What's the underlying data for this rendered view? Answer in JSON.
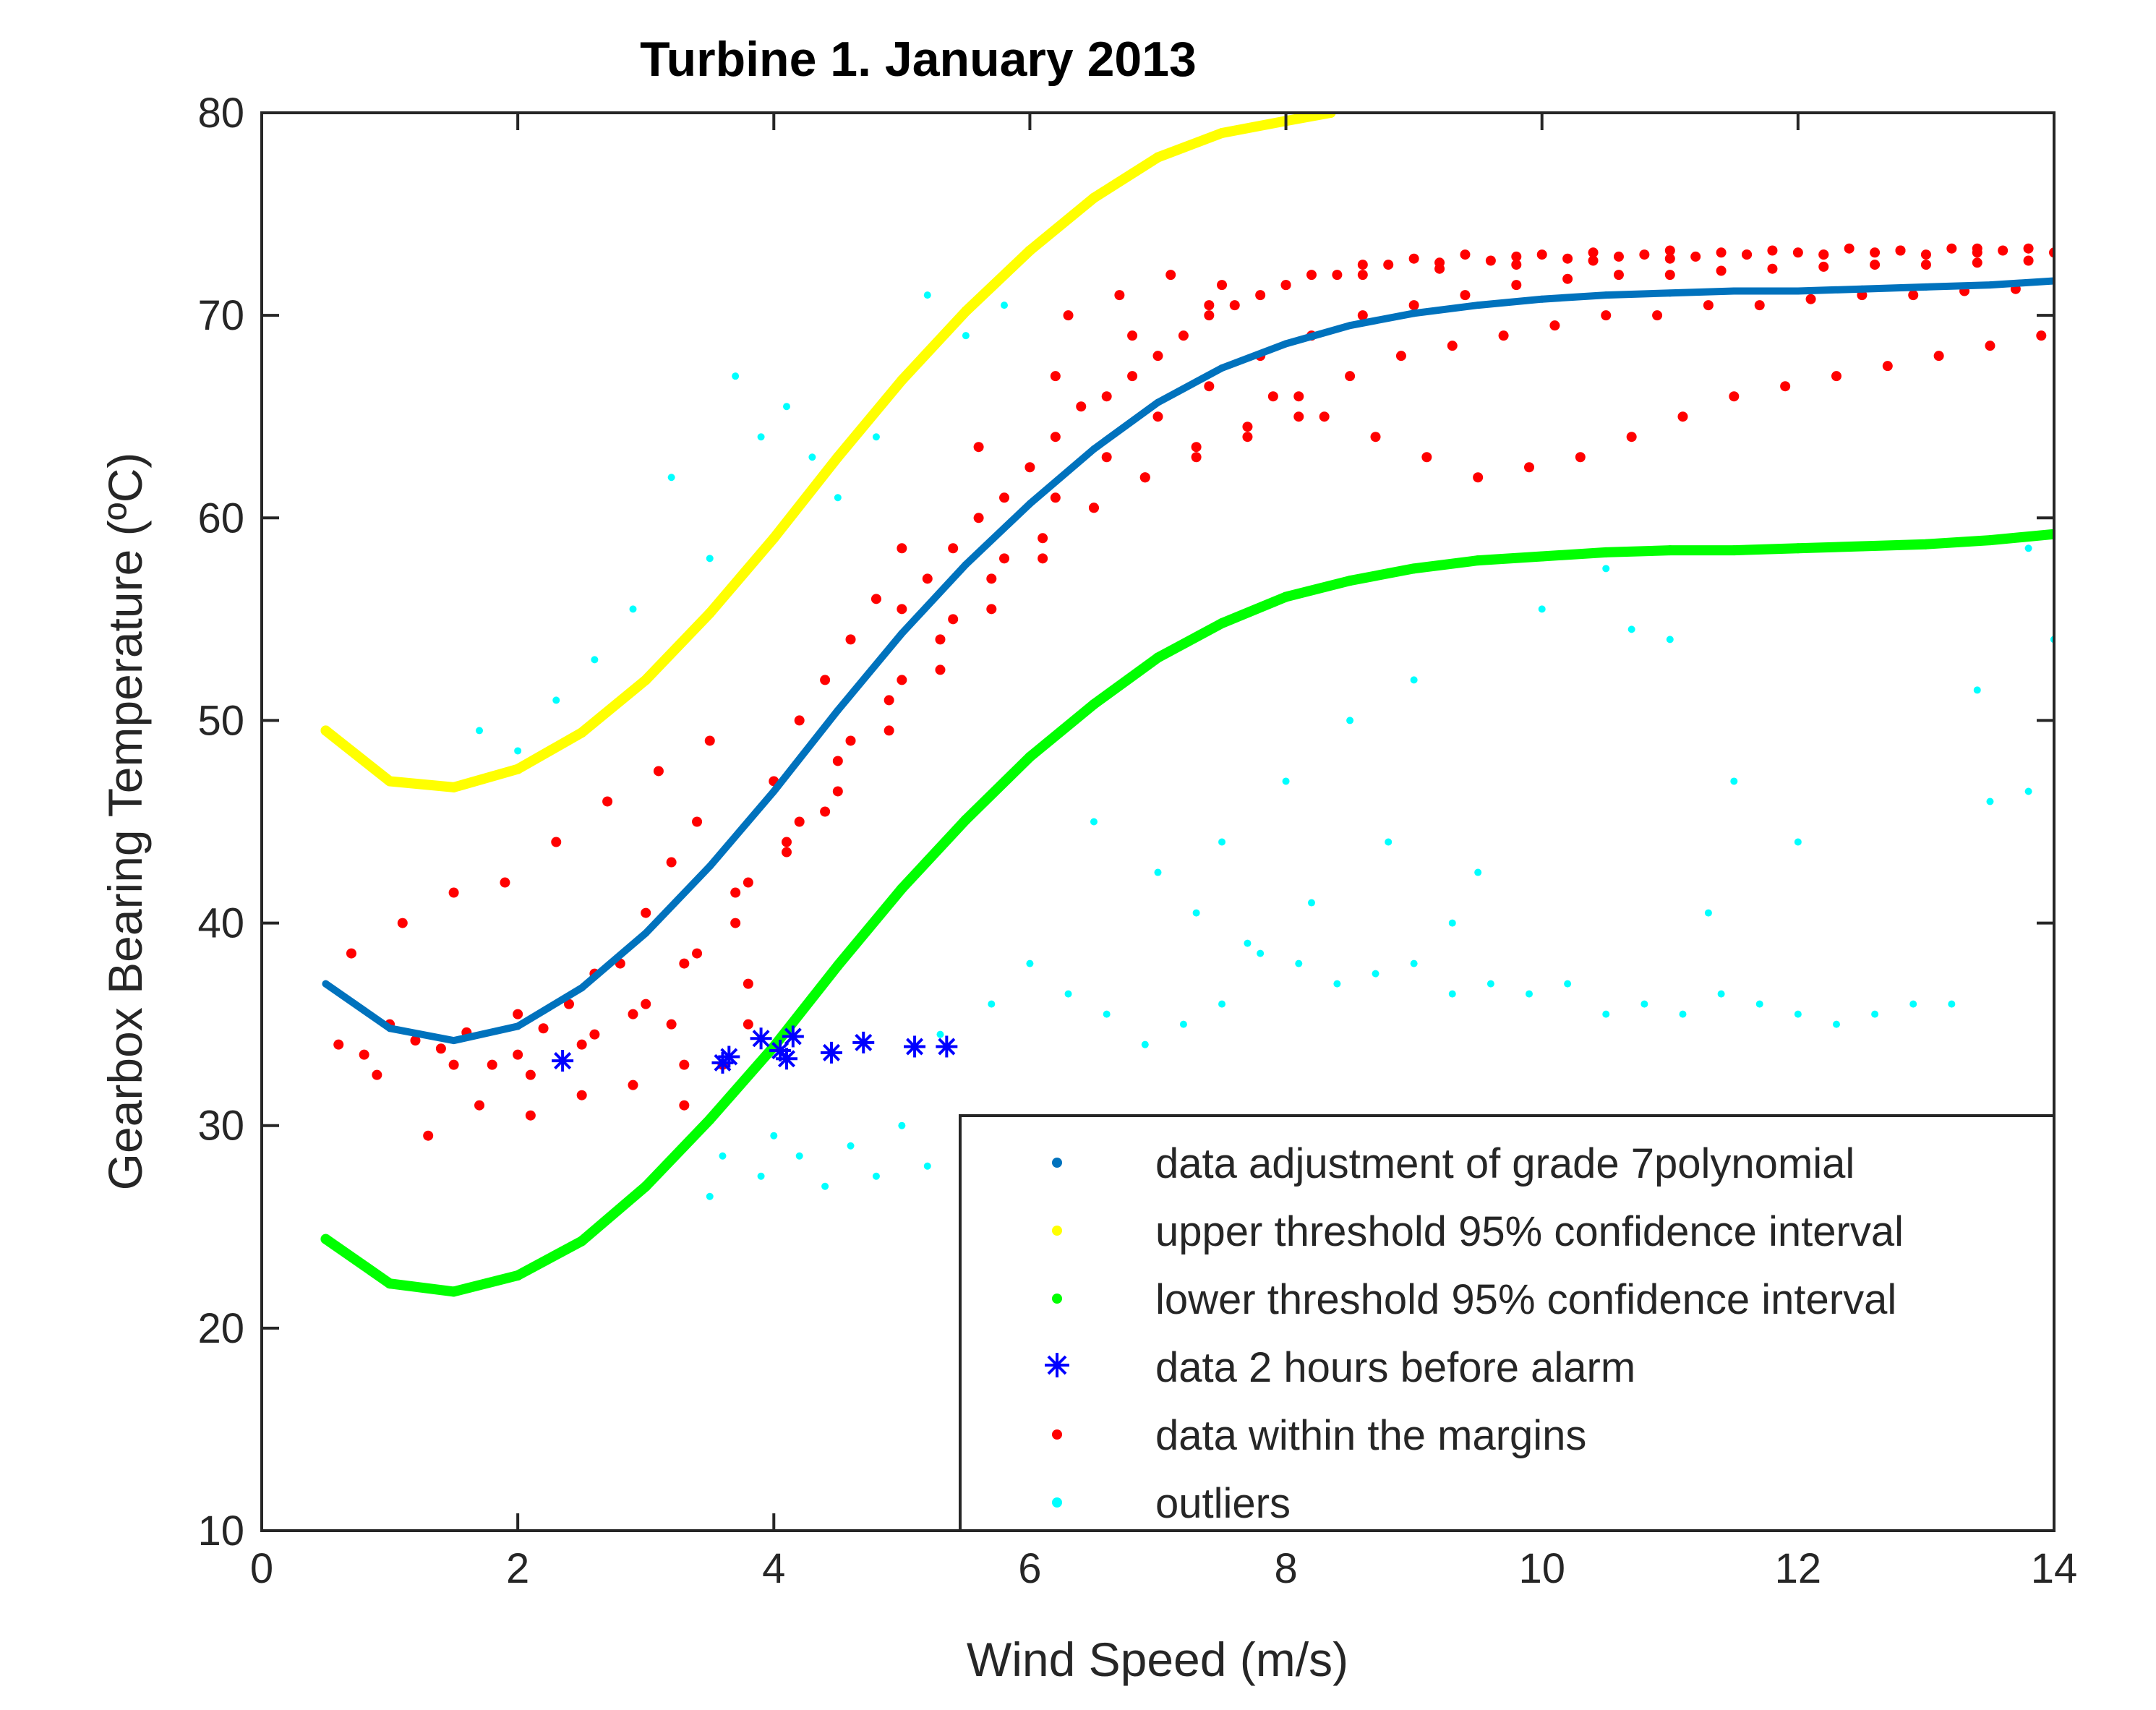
{
  "chart_data": {
    "type": "scatter",
    "title": "Turbine 1. January 2013",
    "xlabel": "Wind Speed (m/s)",
    "ylabel": "Gearbox Bearing Temperature (ºC)",
    "xlim": [
      0,
      14
    ],
    "ylim": [
      10,
      80
    ],
    "xticks": [
      0,
      2,
      4,
      6,
      8,
      10,
      12,
      14
    ],
    "yticks": [
      10,
      20,
      30,
      40,
      50,
      60,
      70,
      80
    ],
    "grid": false,
    "legend_position": "bottom-right",
    "colors": {
      "fit": "#0072bd",
      "upper": "#ffff00",
      "lower": "#00ff00",
      "alarm": "#0000ff",
      "within": "#ff0000",
      "outliers": "#00ffff",
      "axes": "#262626"
    },
    "series": [
      {
        "id": "fit",
        "name": "data adjustment of grade 7polynomial",
        "marker": "dot",
        "x": [
          0.5,
          1.0,
          1.5,
          2.0,
          2.5,
          3.0,
          3.5,
          4.0,
          4.5,
          5.0,
          5.5,
          6.0,
          6.5,
          7.0,
          7.5,
          8.0,
          8.5,
          9.0,
          9.5,
          10.0,
          10.5,
          11.0,
          11.5,
          12.0,
          12.5,
          13.0,
          13.5,
          14.0
        ],
        "y": [
          37.0,
          34.8,
          34.2,
          34.9,
          36.8,
          39.5,
          42.8,
          46.5,
          50.5,
          54.3,
          57.7,
          60.7,
          63.4,
          65.7,
          67.4,
          68.6,
          69.5,
          70.1,
          70.5,
          70.8,
          71.0,
          71.1,
          71.2,
          71.2,
          71.3,
          71.4,
          71.5,
          71.7
        ]
      },
      {
        "id": "upper",
        "name": "upper threshold 95% confidence interval",
        "marker": "dot",
        "x": [
          0.5,
          1.0,
          1.5,
          2.0,
          2.5,
          3.0,
          3.5,
          4.0,
          4.5,
          5.0,
          5.5,
          6.0,
          6.5,
          7.0,
          7.5,
          8.0,
          8.35
        ],
        "y": [
          49.5,
          47.0,
          46.7,
          47.6,
          49.4,
          52.0,
          55.3,
          59.0,
          63.0,
          66.8,
          70.2,
          73.2,
          75.8,
          77.8,
          79.0,
          79.6,
          80.0
        ]
      },
      {
        "id": "lower",
        "name": "lower threshold 95% confidence interval",
        "marker": "dot",
        "x": [
          0.5,
          1.0,
          1.5,
          2.0,
          2.5,
          3.0,
          3.5,
          4.0,
          4.5,
          5.0,
          5.5,
          6.0,
          6.5,
          7.0,
          7.5,
          8.0,
          8.5,
          9.0,
          9.5,
          10.0,
          10.5,
          11.0,
          11.5,
          12.0,
          12.5,
          13.0,
          13.5,
          14.0
        ],
        "y": [
          24.4,
          22.2,
          21.8,
          22.6,
          24.3,
          27.0,
          30.3,
          33.9,
          37.9,
          41.7,
          45.1,
          48.2,
          50.8,
          53.1,
          54.8,
          56.1,
          56.9,
          57.5,
          57.9,
          58.1,
          58.3,
          58.4,
          58.4,
          58.5,
          58.6,
          58.7,
          58.9,
          59.2
        ]
      },
      {
        "id": "alarm",
        "name": "data 2 hours before alarm",
        "marker": "asterisk",
        "x": [
          2.35,
          3.6,
          3.65,
          3.9,
          4.05,
          4.1,
          4.15,
          4.45,
          4.7,
          5.1,
          5.35
        ],
        "y": [
          33.2,
          33.1,
          33.4,
          34.3,
          33.7,
          33.3,
          34.4,
          33.6,
          34.1,
          33.9,
          33.9
        ]
      },
      {
        "id": "within",
        "name": "data within the margins",
        "marker": "dot",
        "x": [
          0.6,
          0.8,
          1.0,
          1.2,
          1.4,
          1.6,
          1.8,
          2.0,
          2.2,
          2.4,
          2.6,
          2.8,
          3.0,
          3.2,
          3.4,
          0.7,
          1.1,
          1.5,
          1.9,
          2.3,
          2.7,
          3.1,
          3.5,
          3.3,
          3.6,
          3.8,
          4.0,
          4.2,
          4.4,
          4.6,
          4.8,
          5.0,
          5.2,
          5.4,
          5.6,
          5.8,
          6.0,
          6.2,
          6.4,
          6.6,
          6.8,
          7.0,
          7.2,
          7.4,
          7.6,
          7.8,
          8.0,
          8.2,
          8.4,
          8.6,
          8.8,
          9.0,
          9.2,
          9.4,
          9.6,
          9.8,
          10.0,
          10.2,
          10.4,
          10.6,
          10.8,
          11.0,
          11.2,
          11.4,
          11.6,
          11.8,
          12.0,
          12.2,
          12.4,
          12.6,
          12.8,
          13.0,
          13.2,
          13.4,
          13.6,
          13.8,
          14.0,
          3.0,
          3.4,
          3.8,
          4.2,
          4.6,
          5.0,
          5.4,
          5.8,
          6.2,
          6.6,
          7.0,
          7.4,
          7.8,
          8.2,
          8.6,
          9.0,
          9.4,
          9.8,
          10.2,
          10.6,
          11.0,
          11.4,
          11.8,
          12.2,
          12.6,
          13.0,
          13.4,
          13.8,
          2.1,
          2.5,
          2.9,
          3.3,
          3.7,
          4.1,
          4.5,
          4.9,
          5.3,
          5.7,
          6.1,
          6.5,
          6.9,
          7.3,
          7.7,
          8.1,
          8.5,
          8.9,
          9.3,
          9.7,
          10.1,
          10.5,
          10.9,
          11.3,
          11.7,
          12.1,
          12.5,
          12.9,
          13.3,
          13.7,
          1.3,
          1.7,
          2.1,
          2.5,
          2.9,
          3.3,
          3.7,
          4.1,
          4.5,
          4.9,
          5.3,
          5.7,
          6.1,
          6.5,
          6.9,
          7.3,
          7.7,
          8.1,
          0.9,
          1.5,
          2.0,
          2.6,
          3.2,
          3.8,
          4.4,
          5.0,
          5.6,
          6.2,
          6.8,
          7.4,
          8.0,
          8.6,
          9.2,
          9.8,
          10.4,
          11.0,
          11.6,
          12.2,
          12.8,
          13.4,
          6.3,
          6.7,
          7.1,
          7.5,
          7.9,
          8.3,
          8.7,
          9.1,
          9.5,
          9.9,
          10.3,
          10.7,
          11.1,
          11.5,
          11.9,
          12.3,
          12.7,
          13.1,
          13.5,
          13.9
        ],
        "y": [
          34.0,
          33.5,
          35.0,
          34.2,
          33.8,
          34.6,
          33.0,
          35.5,
          34.8,
          36.0,
          37.5,
          38.0,
          40.5,
          43.0,
          45.0,
          38.5,
          40.0,
          41.5,
          42.0,
          44.0,
          46.0,
          47.5,
          49.0,
          31.0,
          33.0,
          35.0,
          47.0,
          50.0,
          52.0,
          54.0,
          56.0,
          55.5,
          57.0,
          58.5,
          60.0,
          61.0,
          62.5,
          64.0,
          65.5,
          66.0,
          67.0,
          68.0,
          69.0,
          70.0,
          70.5,
          71.0,
          71.5,
          72.0,
          72.0,
          72.5,
          72.5,
          72.8,
          72.6,
          73.0,
          72.7,
          72.9,
          73.0,
          72.8,
          73.1,
          72.9,
          73.0,
          73.2,
          72.9,
          73.1,
          73.0,
          73.2,
          73.1,
          73.0,
          73.3,
          73.1,
          73.2,
          73.0,
          73.3,
          73.1,
          73.2,
          73.3,
          73.1,
          36.0,
          38.5,
          42.0,
          45.0,
          49.0,
          52.0,
          55.0,
          58.0,
          61.0,
          63.0,
          65.0,
          66.5,
          68.0,
          69.0,
          70.0,
          70.5,
          71.0,
          71.5,
          71.8,
          72.0,
          72.0,
          72.2,
          72.3,
          72.4,
          72.5,
          72.5,
          72.6,
          72.7,
          30.5,
          31.5,
          32.0,
          33.0,
          40.0,
          44.0,
          48.0,
          51.0,
          54.0,
          57.0,
          59.0,
          60.5,
          62.0,
          63.5,
          64.5,
          66.0,
          67.0,
          68.0,
          68.5,
          69.0,
          69.5,
          70.0,
          70.0,
          70.5,
          70.5,
          70.8,
          71.0,
          71.0,
          71.2,
          71.3,
          29.5,
          31.0,
          32.5,
          34.0,
          35.5,
          38.0,
          41.5,
          43.5,
          46.5,
          49.5,
          52.5,
          55.5,
          58.0,
          60.5,
          62.0,
          63.0,
          64.0,
          65.0,
          32.5,
          33.0,
          33.5,
          34.5,
          35.0,
          37.0,
          45.5,
          58.5,
          63.5,
          67.0,
          69.0,
          70.5,
          71.5,
          72.0,
          72.3,
          72.5,
          72.7,
          72.8,
          73.0,
          73.0,
          73.2,
          73.3,
          70.0,
          71.0,
          72.0,
          71.5,
          66.0,
          65.0,
          64.0,
          63.0,
          62.0,
          62.5,
          63.0,
          64.0,
          65.0,
          66.0,
          66.5,
          67.0,
          67.5,
          68.0,
          68.5,
          69.0
        ]
      },
      {
        "id": "outliers",
        "name": "outliers",
        "marker": "dot",
        "x": [
          1.7,
          2.0,
          2.3,
          2.6,
          2.9,
          3.2,
          3.5,
          3.7,
          3.9,
          4.1,
          4.3,
          4.5,
          4.8,
          5.2,
          5.5,
          5.8,
          3.6,
          4.0,
          4.4,
          4.8,
          5.2,
          5.5,
          3.5,
          3.9,
          4.2,
          4.6,
          5.0,
          5.3,
          5.7,
          6.0,
          6.3,
          6.6,
          6.9,
          7.2,
          7.5,
          7.8,
          8.1,
          8.4,
          8.7,
          9.0,
          9.3,
          9.6,
          9.9,
          10.2,
          10.5,
          10.8,
          11.1,
          11.4,
          11.7,
          12.0,
          12.3,
          12.6,
          12.9,
          13.2,
          13.5,
          13.8,
          14.0,
          6.5,
          7.0,
          7.5,
          8.0,
          8.5,
          9.0,
          9.5,
          10.0,
          10.5,
          11.0,
          11.5,
          12.0,
          13.4,
          13.8,
          14.0,
          7.3,
          7.7,
          8.2,
          8.8,
          9.3,
          10.7,
          11.3
        ],
        "y": [
          49.5,
          48.5,
          51.0,
          53.0,
          55.5,
          62.0,
          58.0,
          67.0,
          64.0,
          65.5,
          63.0,
          61.0,
          64.0,
          71.0,
          69.0,
          70.5,
          28.5,
          29.5,
          27.0,
          27.5,
          28.0,
          29.0,
          26.5,
          27.5,
          28.5,
          29.0,
          30.0,
          34.5,
          36.0,
          38.0,
          36.5,
          35.5,
          34.0,
          35.0,
          36.0,
          38.5,
          38.0,
          37.0,
          37.5,
          38.0,
          36.5,
          37.0,
          36.5,
          37.0,
          35.5,
          36.0,
          35.5,
          36.5,
          36.0,
          35.5,
          35.0,
          35.5,
          36.0,
          36.0,
          46.0,
          46.5,
          54.0,
          45.0,
          42.5,
          44.0,
          47.0,
          50.0,
          52.0,
          42.5,
          55.5,
          57.5,
          54.0,
          47.0,
          44.0,
          51.5,
          58.5,
          54.0,
          40.5,
          39.0,
          41.0,
          44.0,
          40.0,
          54.5,
          40.5
        ]
      }
    ]
  }
}
